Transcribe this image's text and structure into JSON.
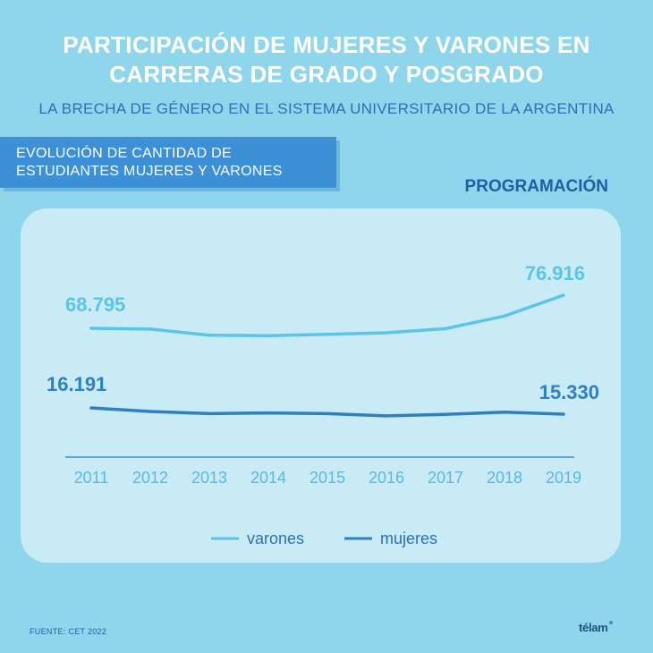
{
  "header": {
    "title": "PARTICIPACIÓN DE MUJERES Y VARONES EN\nCARRERAS DE GRADO Y POSGRADO",
    "subtitle": "LA BRECHA DE GÉNERO EN EL SISTEMA UNIVERSITARIO DE LA ARGENTINA"
  },
  "section": {
    "label": "EVOLUCIÓN DE CANTIDAD DE\nESTUDIANTES MUJERES Y VARONES"
  },
  "category": "PROGRAMACIÓN",
  "footer": {
    "source": "FUENTE: CET 2022",
    "logo": "télam"
  },
  "colors": {
    "background": "#8fd5ec",
    "varones": "#5bc4e8",
    "mujeres": "#2f7fc2"
  },
  "chart_data": {
    "type": "line",
    "x": [
      "2011",
      "2012",
      "2013",
      "2014",
      "2015",
      "2016",
      "2017",
      "2018",
      "2019"
    ],
    "series": [
      {
        "name": "varones",
        "values": [
          68795,
          68600,
          67100,
          67000,
          67300,
          67700,
          68700,
          71800,
          76916
        ],
        "start_label": "68.795",
        "end_label": "76.916"
      },
      {
        "name": "mujeres",
        "values": [
          16191,
          15700,
          15400,
          15500,
          15400,
          15100,
          15300,
          15600,
          15330
        ],
        "start_label": "16.191",
        "end_label": "15.330"
      }
    ],
    "legend": [
      "varones",
      "mujeres"
    ],
    "legend_position": "bottom",
    "grid": false
  }
}
